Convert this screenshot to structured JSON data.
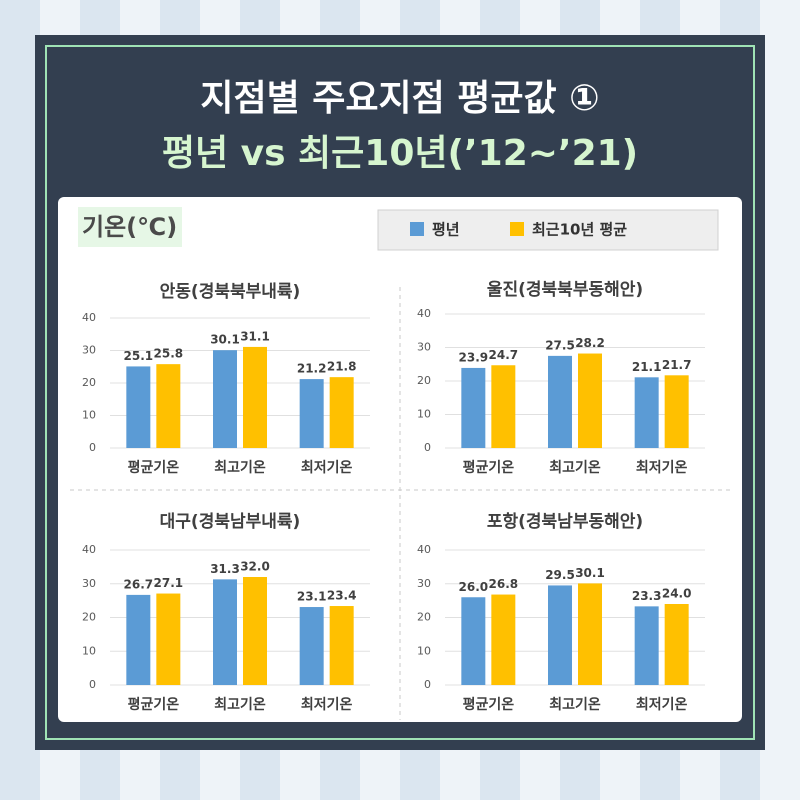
{
  "header": {
    "line1": "지점별 주요지점 평균값 ①",
    "line2": "평년 vs 최근10년(’12~’21)"
  },
  "unit_label": "기온(℃)",
  "chart_data": [
    {
      "type": "bar",
      "title": "안동(경북북부내륙)",
      "categories": [
        "평균기온",
        "최고기온",
        "최저기온"
      ],
      "series": [
        {
          "name": "평년",
          "color": "#5b9bd5",
          "values": [
            25.1,
            30.1,
            21.2
          ]
        },
        {
          "name": "최근10년 평균",
          "color": "#ffc000",
          "values": [
            25.8,
            31.1,
            21.8
          ]
        }
      ],
      "ylim": [
        0,
        40
      ],
      "yticks": [
        0,
        10,
        20,
        30,
        40
      ],
      "grid": true
    },
    {
      "type": "bar",
      "title": "울진(경북북부동해안)",
      "categories": [
        "평균기온",
        "최고기온",
        "최저기온"
      ],
      "series": [
        {
          "name": "평년",
          "color": "#5b9bd5",
          "values": [
            23.9,
            27.5,
            21.1
          ]
        },
        {
          "name": "최근10년 평균",
          "color": "#ffc000",
          "values": [
            24.7,
            28.2,
            21.7
          ]
        }
      ],
      "ylim": [
        0,
        40
      ],
      "yticks": [
        0,
        10,
        20,
        30,
        40
      ],
      "grid": true
    },
    {
      "type": "bar",
      "title": "대구(경북남부내륙)",
      "categories": [
        "평균기온",
        "최고기온",
        "최저기온"
      ],
      "series": [
        {
          "name": "평년",
          "color": "#5b9bd5",
          "values": [
            26.7,
            31.3,
            23.1
          ]
        },
        {
          "name": "최근10년 평균",
          "color": "#ffc000",
          "values": [
            27.1,
            32.0,
            23.4
          ],
          "value_labels": [
            "27.1",
            "32.0",
            "23.4"
          ]
        }
      ],
      "ylim": [
        0,
        40
      ],
      "yticks": [
        0,
        10,
        20,
        30,
        40
      ],
      "grid": true
    },
    {
      "type": "bar",
      "title": "포항(경북남부동해안)",
      "categories": [
        "평균기온",
        "최고기온",
        "최저기온"
      ],
      "series": [
        {
          "name": "평년",
          "color": "#5b9bd5",
          "values": [
            26.0,
            29.5,
            23.3
          ],
          "value_labels": [
            "26.0",
            "29.5",
            "23.3"
          ]
        },
        {
          "name": "최근10년 평균",
          "color": "#ffc000",
          "values": [
            26.8,
            30.1,
            24.0
          ],
          "value_labels": [
            "26.8",
            "30.1",
            "24.0"
          ]
        }
      ],
      "ylim": [
        0,
        40
      ],
      "yticks": [
        0,
        10,
        20,
        30,
        40
      ],
      "grid": true
    }
  ]
}
